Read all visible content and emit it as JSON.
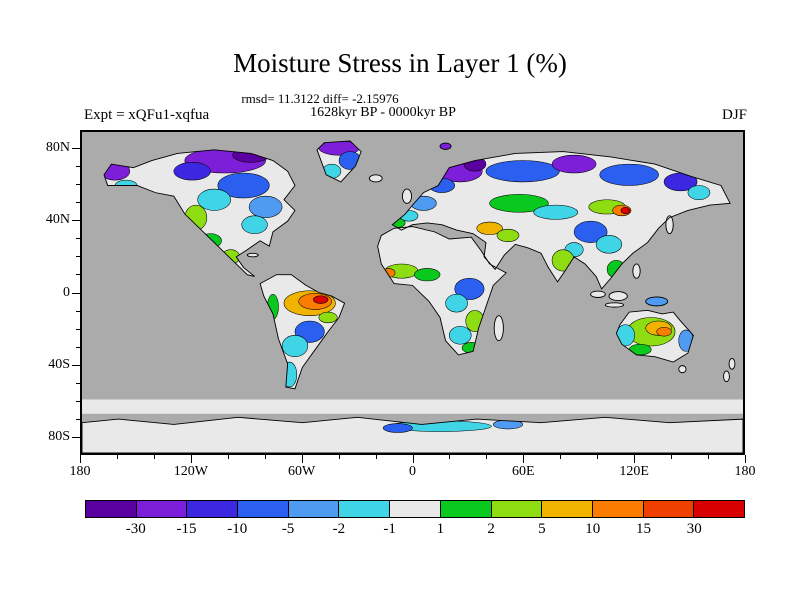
{
  "page": {
    "background": "#ffffff"
  },
  "header": {
    "title": "Moisture Stress in Layer 1 (%)",
    "stats_line": "rmsd= 11.3122 diff= -2.15976",
    "period_line": "1628kyr BP - 0000kyr BP",
    "experiment_label": "Expt = xQFu1-xqfua",
    "season_label": "DJF"
  },
  "map": {
    "mask_color": "#ababab",
    "neutral_color": "#e9e9e9",
    "border_color": "#000000",
    "lat_ticks": [
      {
        "label": "80N",
        "value": 80
      },
      {
        "label": "40N",
        "value": 40
      },
      {
        "label": "0",
        "value": 0
      },
      {
        "label": "40S",
        "value": -40
      },
      {
        "label": "80S",
        "value": -80
      }
    ],
    "lon_ticks": [
      {
        "label": "180",
        "value": -180
      },
      {
        "label": "120W",
        "value": -120
      },
      {
        "label": "60W",
        "value": -60
      },
      {
        "label": "0",
        "value": 0
      },
      {
        "label": "60E",
        "value": 60
      },
      {
        "label": "120E",
        "value": 120
      },
      {
        "label": "180",
        "value": 180
      }
    ]
  },
  "colorbar": {
    "colors": [
      "#5a00a0",
      "#7d1fd8",
      "#3c28e0",
      "#2a5ff0",
      "#4f9bf2",
      "#3fd4e6",
      "#e9e9e9",
      "#0bc81e",
      "#8edc12",
      "#f0b400",
      "#fa7d00",
      "#f04000",
      "#d80000"
    ],
    "tick_labels": [
      "-30",
      "-15",
      "-10",
      "-5",
      "-2",
      "-1",
      "1",
      "2",
      "5",
      "10",
      "15",
      "30"
    ]
  },
  "chart_data": {
    "type": "heatmap",
    "title": "Moisture Stress in Layer 1 (%)",
    "subtitle": "rmsd= 11.3122 diff= -2.15976",
    "comparison": "1628kyr BP - 0000kyr BP",
    "experiment": "Expt = xQFu1-xqfua",
    "season": "DJF",
    "units": "%",
    "projection": "equirectangular",
    "lon_range": [
      -180,
      180
    ],
    "lat_range": [
      -90,
      90
    ],
    "x_ticks": [
      "180",
      "120W",
      "60W",
      "0",
      "60E",
      "120E",
      "180"
    ],
    "y_ticks": [
      "80N",
      "40N",
      "0",
      "40S",
      "80S"
    ],
    "contour_levels": [
      -30,
      -15,
      -10,
      -5,
      -2,
      -1,
      1,
      2,
      5,
      10,
      15,
      30
    ],
    "palette": [
      "#5a00a0",
      "#7d1fd8",
      "#3c28e0",
      "#2a5ff0",
      "#4f9bf2",
      "#3fd4e6",
      "#e9e9e9",
      "#0bc81e",
      "#8edc12",
      "#f0b400",
      "#fa7d00",
      "#f04000",
      "#d80000"
    ],
    "stats": {
      "rmsd": 11.3122,
      "diff": -2.15976
    },
    "legend_position": "bottom",
    "notes": "Filled-contour anomaly map over land (gray = masked ocean/no data). Strong negative anomalies (purple/blue) over Arctic Canada, Greenland, Scandinavia and Siberia; positive anomalies (yellow/orange/red) over western North America, eastern Amazonia, the Sahel, Mongolia and central Australia; near-zero (light gray) elsewhere."
  }
}
